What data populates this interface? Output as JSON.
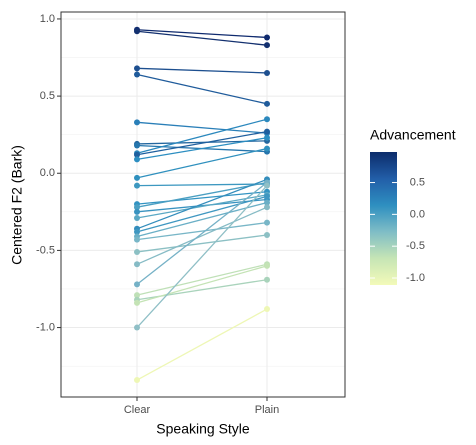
{
  "chart_data": {
    "type": "slope",
    "x_label": "Speaking Style",
    "y_label": "Centered F2 (Bark)",
    "categories": [
      "Clear",
      "Plain"
    ],
    "ylim": [
      -1.45,
      1.045
    ],
    "yticks": [
      {
        "value": -1,
        "label": "-1.0"
      },
      -0.5,
      {
        "value": 0,
        "label": "0.0"
      },
      0.5,
      {
        "value": 1,
        "label": "1.0"
      }
    ],
    "grid": true,
    "legend": {
      "title": "Advancement",
      "position": "right",
      "lim": [
        -1.11,
        0.98
      ],
      "ticks": [
        {
          "value": -1,
          "label": "-1.0"
        },
        -0.5,
        {
          "value": 0,
          "label": "0.0"
        },
        0.5
      ],
      "colors": [
        "#f3fab9",
        "#c6e5b5",
        "#7fbdc6",
        "#2e8fc0",
        "#225ea8",
        "#0c2c6b"
      ]
    },
    "series": [
      {
        "color": "#0f2a6e",
        "values": [
          0.93,
          0.88
        ]
      },
      {
        "color": "#13306f",
        "values": [
          0.92,
          0.83
        ]
      },
      {
        "color": "#1d4f8f",
        "values": [
          0.68,
          0.65
        ]
      },
      {
        "color": "#1f5b9b",
        "values": [
          0.64,
          0.45
        ]
      },
      {
        "color": "#2a7fb8",
        "values": [
          0.33,
          0.26
        ]
      },
      {
        "color": "#24679f",
        "values": [
          0.19,
          0.21
        ]
      },
      {
        "color": "#2676ad",
        "values": [
          0.18,
          0.14
        ]
      },
      {
        "color": "#2b88bd",
        "values": [
          0.13,
          0.35
        ]
      },
      {
        "color": "#1f5f9e",
        "values": [
          0.12,
          0.27
        ]
      },
      {
        "color": "#2c8ec1",
        "values": [
          0.09,
          0.23
        ]
      },
      {
        "color": "#2f90be",
        "values": [
          -0.03,
          0.16
        ]
      },
      {
        "color": "#3d98c0",
        "values": [
          -0.08,
          -0.07
        ]
      },
      {
        "color": "#3293c2",
        "values": [
          -0.2,
          -0.12
        ]
      },
      {
        "color": "#4b9fc2",
        "values": [
          -0.22,
          -0.06
        ]
      },
      {
        "color": "#3993c0",
        "values": [
          -0.25,
          -0.17
        ]
      },
      {
        "color": "#5aa8c4",
        "values": [
          -0.29,
          -0.14
        ]
      },
      {
        "color": "#338dbc",
        "values": [
          -0.36,
          -0.04
        ]
      },
      {
        "color": "#3f97c1",
        "values": [
          -0.38,
          -0.15
        ]
      },
      {
        "color": "#6aafc6",
        "values": [
          -0.41,
          -0.19
        ]
      },
      {
        "color": "#78b6c7",
        "values": [
          -0.43,
          -0.32
        ]
      },
      {
        "color": "#8cc0c4",
        "values": [
          -0.51,
          -0.4
        ]
      },
      {
        "color": "#86bbc5",
        "values": [
          -0.59,
          -0.22
        ]
      },
      {
        "color": "#75b1c6",
        "values": [
          -0.72,
          -0.06
        ]
      },
      {
        "color": "#bfe0b7",
        "values": [
          -0.79,
          -0.59
        ]
      },
      {
        "color": "#a9d3bb",
        "values": [
          -0.82,
          -0.69
        ]
      },
      {
        "color": "#c4e3b5",
        "values": [
          -0.84,
          -0.6
        ]
      },
      {
        "color": "#8fbfc6",
        "values": [
          -1.0,
          -0.08
        ]
      },
      {
        "color": "#eef7b5",
        "values": [
          -1.34,
          -0.88
        ]
      }
    ]
  }
}
